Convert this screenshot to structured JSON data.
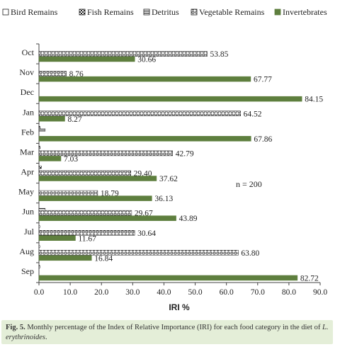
{
  "chart_data": {
    "type": "bar",
    "orientation": "horizontal",
    "categories": [
      "Oct",
      "Nov",
      "Dec",
      "Jan",
      "Feb",
      "Mar",
      "Apr",
      "May",
      "Jun",
      "Jul",
      "Aug",
      "Sep"
    ],
    "series": [
      {
        "name": "Bird Remains",
        "values": [
          0,
          0,
          0,
          0,
          0.3,
          0,
          0,
          0,
          0,
          0.3,
          0.3,
          0
        ],
        "color": "#ffffff",
        "pattern": "none"
      },
      {
        "name": "Fish Remains",
        "values": [
          0,
          0,
          0,
          0,
          0.4,
          0.4,
          0.8,
          0,
          0,
          0,
          0,
          0.3
        ],
        "color": "#222222",
        "pattern": "checker"
      },
      {
        "name": "Detritus",
        "values": [
          0,
          0,
          0,
          0,
          2.0,
          0,
          0,
          0,
          2.0,
          0,
          0,
          0
        ],
        "color": "#222222",
        "pattern": "hstripe"
      },
      {
        "name": "Vegetable Remains",
        "values": [
          53.85,
          8.76,
          0,
          64.52,
          0,
          42.79,
          29.4,
          18.79,
          29.67,
          30.64,
          63.8,
          0
        ],
        "color": "#222222",
        "pattern": "circles"
      },
      {
        "name": "Invertebrates",
        "values": [
          30.66,
          67.77,
          84.15,
          8.27,
          67.86,
          7.03,
          37.62,
          36.13,
          43.89,
          11.67,
          16.84,
          82.72
        ],
        "color": "#5e7f3e",
        "pattern": "solid"
      }
    ],
    "value_labels": {
      "Vegetable Remains": [
        "53.85",
        "8.76",
        "",
        "64.52",
        "",
        "42.79",
        "29.40",
        "18.79",
        "29.67",
        "30.64",
        "63.80",
        ""
      ],
      "Invertebrates": [
        "30.66",
        "67.77",
        "84.15",
        "8.27",
        "67.86",
        "7.03",
        "37.62",
        "36.13",
        "43.89",
        "11.67",
        "16.84",
        "82.72"
      ]
    },
    "xlabel": "IRI %",
    "xlim": [
      0,
      90
    ],
    "xticks": [
      "0.0",
      "10.0",
      "20.0",
      "30.0",
      "40.0",
      "50.0",
      "60.0",
      "70.0",
      "80.0",
      "90.0"
    ],
    "annotation": "n = 200",
    "legend_position": "top",
    "grid": false
  },
  "caption": {
    "label": "Fig. 5.",
    "text": " Monthly percentage of the Index of Relative Importance (IRI) for each food category in the diet of ",
    "species": "L. erythrinoides",
    "end": "."
  }
}
